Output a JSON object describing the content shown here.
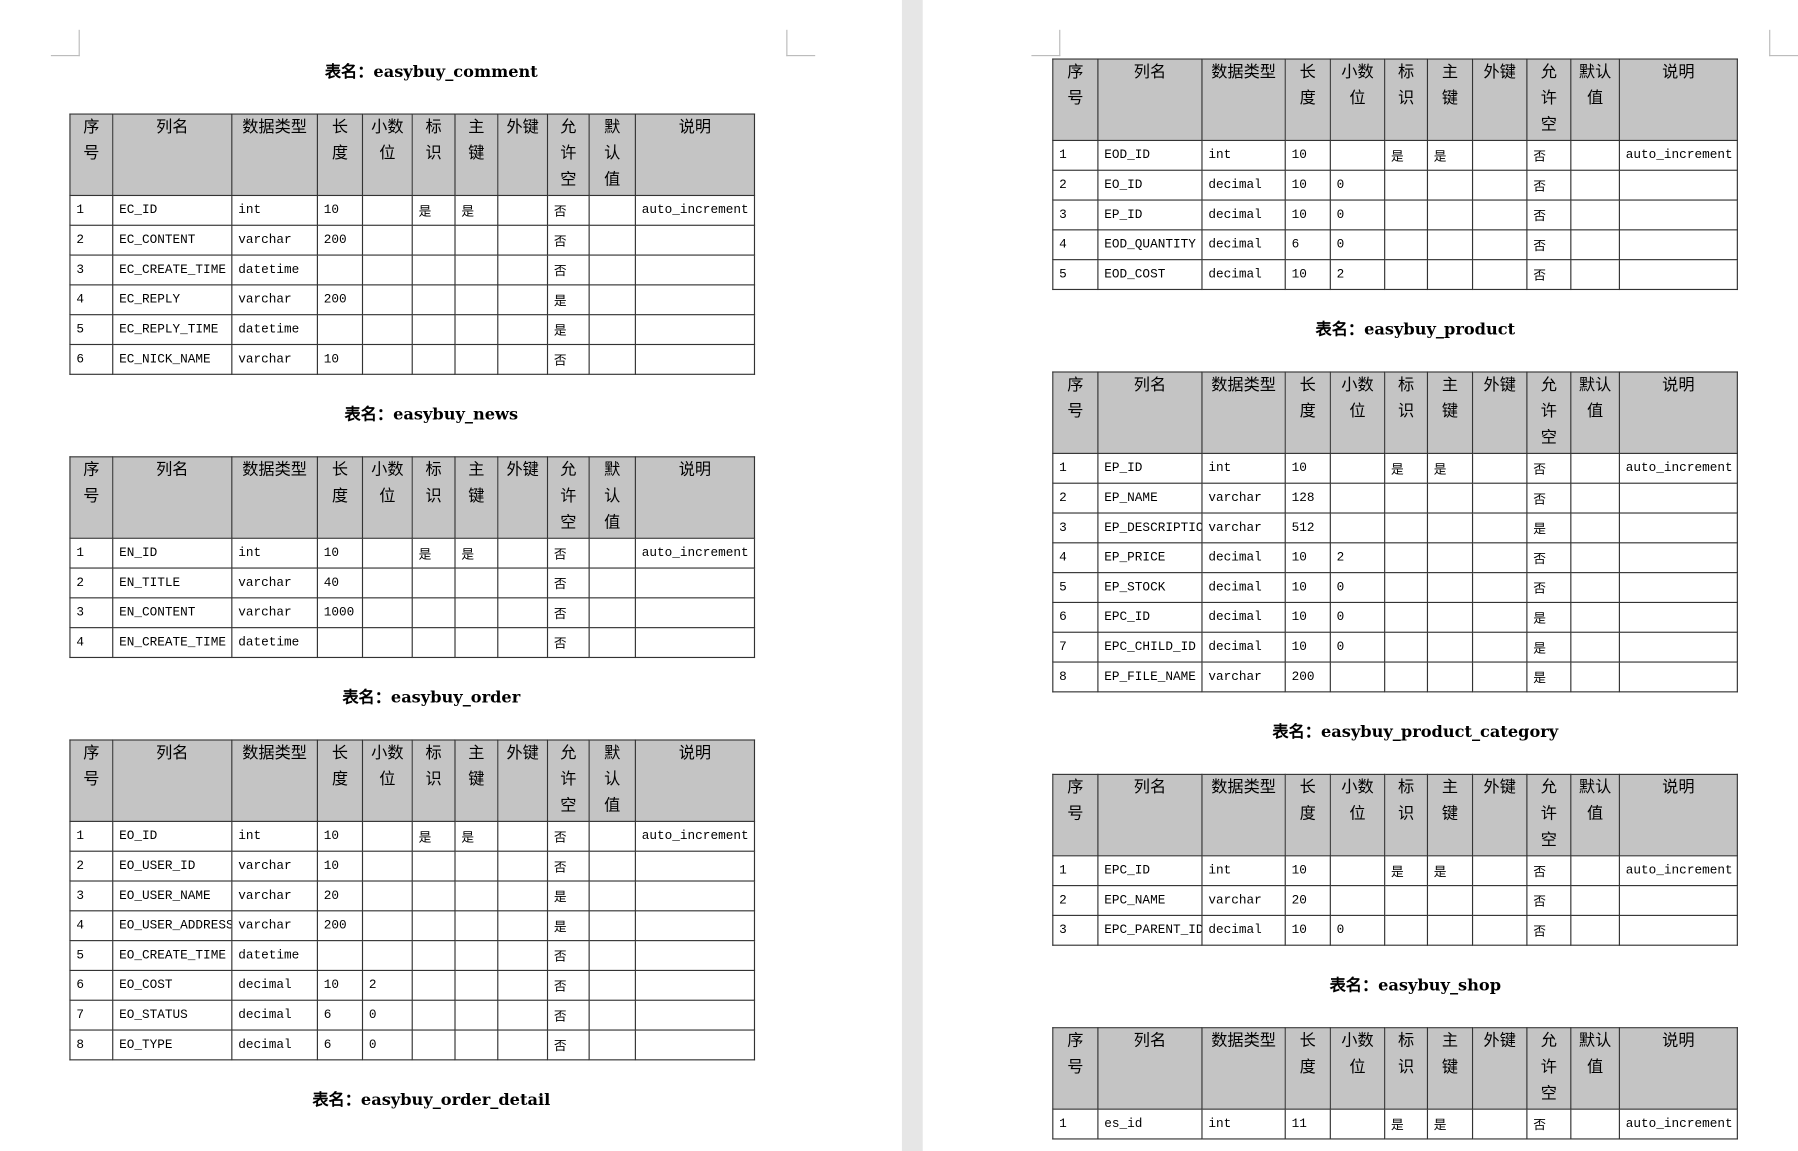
{
  "headers": [
    "序号",
    "列名",
    "数据类型",
    "长度",
    "小数位",
    "标识",
    "主键",
    "外键",
    "允许空",
    "默认值",
    "说明"
  ],
  "tables": [
    {
      "title": "表名：easybuy_comment",
      "rows": [
        [
          "1",
          "EC_ID",
          "int",
          "10",
          null,
          "是",
          "是",
          null,
          "否",
          null,
          "auto_increment"
        ],
        [
          "2",
          "EC_CONTENT",
          "varchar",
          "200",
          null,
          null,
          null,
          null,
          "否",
          null,
          null
        ],
        [
          "3",
          "EC_CREATE_TIME",
          "datetime",
          null,
          null,
          null,
          null,
          null,
          "否",
          null,
          null
        ],
        [
          "4",
          "EC_REPLY",
          "varchar",
          "200",
          null,
          null,
          null,
          null,
          "是",
          null,
          null
        ],
        [
          "5",
          "EC_REPLY_TIME",
          "datetime",
          null,
          null,
          null,
          null,
          null,
          "是",
          null,
          null
        ],
        [
          "6",
          "EC_NICK_NAME",
          "varchar",
          "10",
          null,
          null,
          null,
          null,
          "否",
          null,
          null
        ]
      ]
    },
    {
      "title": "表名：easybuy_news",
      "rows": [
        [
          "1",
          "EN_ID",
          "int",
          "10",
          null,
          "是",
          "是",
          null,
          "否",
          null,
          "auto_increment"
        ],
        [
          "2",
          "EN_TITLE",
          "varchar",
          "40",
          null,
          null,
          null,
          null,
          "否",
          null,
          null
        ],
        [
          "3",
          "EN_CONTENT",
          "varchar",
          "1000",
          null,
          null,
          null,
          null,
          "否",
          null,
          null
        ],
        [
          "4",
          "EN_CREATE_TIME",
          "datetime",
          null,
          null,
          null,
          null,
          null,
          "否",
          null,
          null
        ]
      ]
    },
    {
      "title": "表名：easybuy_order",
      "rows": [
        [
          "1",
          "EO_ID",
          "int",
          "10",
          null,
          "是",
          "是",
          null,
          "否",
          null,
          "auto_increment"
        ],
        [
          "2",
          "EO_USER_ID",
          "varchar",
          "10",
          null,
          null,
          null,
          null,
          "否",
          null,
          null
        ],
        [
          "3",
          "EO_USER_NAME",
          "varchar",
          "20",
          null,
          null,
          null,
          null,
          "是",
          null,
          null
        ],
        [
          "4",
          "EO_USER_ADDRESS",
          "varchar",
          "200",
          null,
          null,
          null,
          null,
          "是",
          null,
          null
        ],
        [
          "5",
          "EO_CREATE_TIME",
          "datetime",
          null,
          null,
          null,
          null,
          null,
          "否",
          null,
          null
        ],
        [
          "6",
          "EO_COST",
          "decimal",
          "10",
          "2",
          null,
          null,
          null,
          "否",
          null,
          null
        ],
        [
          "7",
          "EO_STATUS",
          "decimal",
          "6",
          "0",
          null,
          null,
          null,
          "否",
          null,
          null
        ],
        [
          "8",
          "EO_TYPE",
          "decimal",
          "6",
          "0",
          null,
          null,
          null,
          "否",
          null,
          null
        ]
      ]
    },
    {
      "title": "表名：easybuy_order_detail",
      "rows": [
        [
          "1",
          "EOD_ID",
          "int",
          "10",
          null,
          "是",
          "是",
          null,
          "否",
          null,
          "auto_increment"
        ],
        [
          "2",
          "EO_ID",
          "decimal",
          "10",
          "0",
          null,
          null,
          null,
          "否",
          null,
          null
        ],
        [
          "3",
          "EP_ID",
          "decimal",
          "10",
          "0",
          null,
          null,
          null,
          "否",
          null,
          null
        ],
        [
          "4",
          "EOD_QUANTITY",
          "decimal",
          "6",
          "0",
          null,
          null,
          null,
          "否",
          null,
          null
        ],
        [
          "5",
          "EOD_COST",
          "decimal",
          "10",
          "2",
          null,
          null,
          null,
          "否",
          null,
          null
        ]
      ]
    },
    {
      "title": "表名：easybuy_product",
      "rows": [
        [
          "1",
          "EP_ID",
          "int",
          "10",
          null,
          "是",
          "是",
          null,
          "否",
          null,
          "auto_increment"
        ],
        [
          "2",
          "EP_NAME",
          "varchar",
          "128",
          null,
          null,
          null,
          null,
          "否",
          null,
          null
        ],
        [
          "3",
          "EP_DESCRIPTION",
          "varchar",
          "512",
          null,
          null,
          null,
          null,
          "是",
          null,
          null
        ],
        [
          "4",
          "EP_PRICE",
          "decimal",
          "10",
          "2",
          null,
          null,
          null,
          "否",
          null,
          null
        ],
        [
          "5",
          "EP_STOCK",
          "decimal",
          "10",
          "0",
          null,
          null,
          null,
          "否",
          null,
          null
        ],
        [
          "6",
          "EPC_ID",
          "decimal",
          "10",
          "0",
          null,
          null,
          null,
          "是",
          null,
          null
        ],
        [
          "7",
          "EPC_CHILD_ID",
          "decimal",
          "10",
          "0",
          null,
          null,
          null,
          "是",
          null,
          null
        ],
        [
          "8",
          "EP_FILE_NAME",
          "varchar",
          "200",
          null,
          null,
          null,
          null,
          "是",
          null,
          null
        ]
      ]
    },
    {
      "title": "表名：easybuy_product_category",
      "rows": [
        [
          "1",
          "EPC_ID",
          "int",
          "10",
          null,
          "是",
          "是",
          null,
          "否",
          null,
          "auto_increment"
        ],
        [
          "2",
          "EPC_NAME",
          "varchar",
          "20",
          null,
          null,
          null,
          null,
          "否",
          null,
          null
        ],
        [
          "3",
          "EPC_PARENT_ID",
          "decimal",
          "10",
          "0",
          null,
          null,
          null,
          "否",
          null,
          null
        ]
      ]
    },
    {
      "title": "表名：easybuy_shop",
      "rows": [
        [
          "1",
          "es_id",
          "int",
          "11",
          null,
          "是",
          "是",
          null,
          "否",
          null,
          "auto_increment"
        ]
      ]
    }
  ]
}
